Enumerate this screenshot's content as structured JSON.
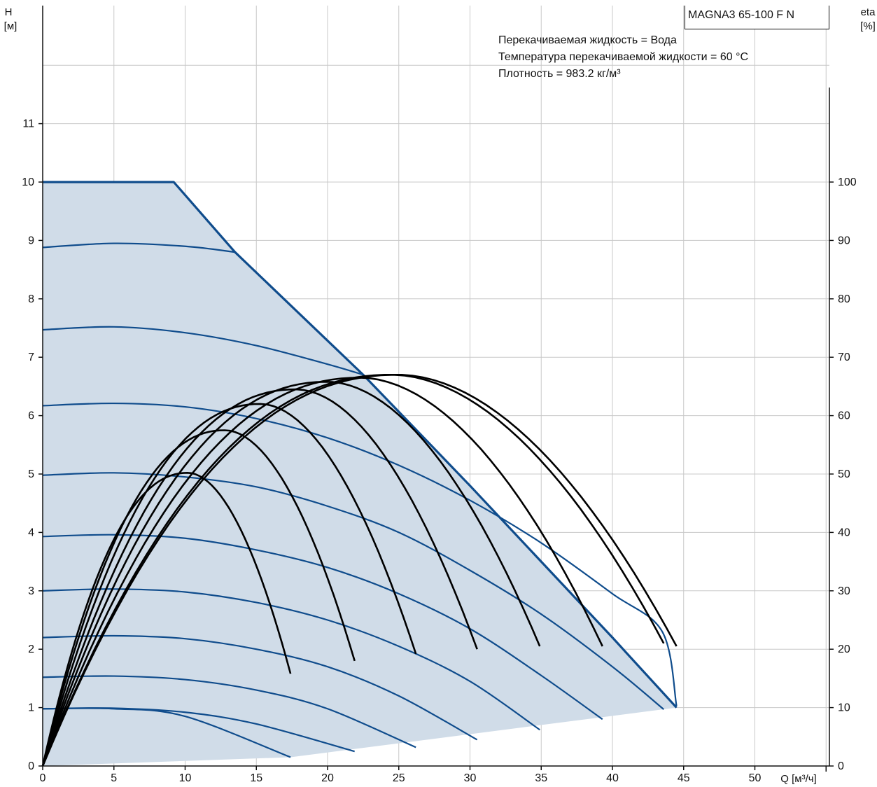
{
  "chart_data": {
    "type": "line",
    "ylabel_left": "H",
    "ylabel_left_unit": "[м]",
    "ylabel_right": "eta",
    "ylabel_right_unit": "[%]",
    "xlabel": "Q [м³/ч]",
    "xlim": [
      0,
      55
    ],
    "ylim_left": [
      0,
      12
    ],
    "ylim_right": [
      0,
      120
    ],
    "x_ticks": [
      "0",
      "5",
      "10",
      "15",
      "20",
      "25",
      "30",
      "35",
      "40",
      "45",
      "50"
    ],
    "y_left_ticks": [
      "0",
      "1",
      "2",
      "3",
      "4",
      "5",
      "6",
      "7",
      "8",
      "9",
      "10",
      "11"
    ],
    "y_right_ticks": [
      "0",
      "10",
      "20",
      "30",
      "40",
      "50",
      "60",
      "70",
      "80",
      "90",
      "100"
    ],
    "grid": true,
    "colors": {
      "head_curve": "#0f4c8c",
      "operating_area": "#d0dce8",
      "efficiency_curve": "#000000",
      "grid": "#c8c8c8"
    },
    "operating_area": {
      "max_curve": [
        [
          0,
          10.0
        ],
        [
          9.2,
          10.0
        ],
        [
          13.5,
          8.8
        ],
        [
          22.5,
          6.7
        ],
        [
          30,
          4.8
        ],
        [
          40,
          2.2
        ],
        [
          44.5,
          1.0
        ]
      ],
      "min_curve": [
        [
          44.5,
          1.0
        ],
        [
          17.4,
          0.15
        ]
      ]
    },
    "head_curves": [
      {
        "points": [
          [
            0,
            8.88
          ],
          [
            5,
            8.95
          ],
          [
            10,
            8.9
          ],
          [
            13.5,
            8.8
          ]
        ]
      },
      {
        "points": [
          [
            0,
            7.47
          ],
          [
            5,
            7.52
          ],
          [
            10,
            7.42
          ],
          [
            15,
            7.2
          ],
          [
            20,
            6.88
          ],
          [
            22.5,
            6.7
          ]
        ]
      },
      {
        "points": [
          [
            0,
            6.17
          ],
          [
            5,
            6.21
          ],
          [
            10,
            6.15
          ],
          [
            15,
            5.95
          ],
          [
            20,
            5.62
          ],
          [
            25,
            5.15
          ],
          [
            30,
            4.55
          ],
          [
            35,
            3.82
          ],
          [
            40,
            2.95
          ],
          [
            43.5,
            2.3
          ],
          [
            44.5,
            1.03
          ]
        ]
      },
      {
        "points": [
          [
            0,
            4.98
          ],
          [
            5,
            5.02
          ],
          [
            10,
            4.95
          ],
          [
            15,
            4.78
          ],
          [
            20,
            4.45
          ],
          [
            25,
            4.0
          ],
          [
            30,
            3.35
          ],
          [
            35,
            2.6
          ],
          [
            40,
            1.7
          ],
          [
            43.6,
            0.97
          ]
        ]
      },
      {
        "points": [
          [
            0,
            3.93
          ],
          [
            5,
            3.96
          ],
          [
            10,
            3.9
          ],
          [
            15,
            3.7
          ],
          [
            20,
            3.4
          ],
          [
            25,
            2.95
          ],
          [
            30,
            2.35
          ],
          [
            35,
            1.55
          ],
          [
            39.3,
            0.8
          ]
        ]
      },
      {
        "points": [
          [
            0,
            3.0
          ],
          [
            5,
            3.03
          ],
          [
            10,
            2.98
          ],
          [
            15,
            2.8
          ],
          [
            20,
            2.5
          ],
          [
            25,
            2.05
          ],
          [
            30,
            1.45
          ],
          [
            34.9,
            0.62
          ]
        ]
      },
      {
        "points": [
          [
            0,
            2.2
          ],
          [
            5,
            2.23
          ],
          [
            10,
            2.18
          ],
          [
            15,
            2.0
          ],
          [
            20,
            1.7
          ],
          [
            25,
            1.2
          ],
          [
            30.5,
            0.45
          ]
        ]
      },
      {
        "points": [
          [
            0,
            1.52
          ],
          [
            5,
            1.54
          ],
          [
            10,
            1.48
          ],
          [
            15,
            1.3
          ],
          [
            20,
            0.98
          ],
          [
            26.2,
            0.32
          ]
        ]
      },
      {
        "points": [
          [
            0,
            0.98
          ],
          [
            5,
            0.99
          ],
          [
            10,
            0.92
          ],
          [
            15,
            0.72
          ],
          [
            21.9,
            0.25
          ]
        ]
      },
      {
        "points": [
          [
            0,
            0.98
          ],
          [
            5,
            0.98
          ],
          [
            10,
            0.85
          ],
          [
            17.4,
            0.15
          ]
        ]
      }
    ],
    "efficiency_curves": [
      {
        "x_end": 17.4,
        "peak_x": 10.2,
        "peak_eta": 50.2,
        "end_eta": 15.8
      },
      {
        "x_end": 21.9,
        "peak_x": 12.8,
        "peak_eta": 57.5,
        "end_eta": 18.0
      },
      {
        "x_end": 26.2,
        "peak_x": 15.3,
        "peak_eta": 62.0,
        "end_eta": 19.2
      },
      {
        "x_end": 30.5,
        "peak_x": 17.8,
        "peak_eta": 64.5,
        "end_eta": 20.0
      },
      {
        "x_end": 34.9,
        "peak_x": 20.0,
        "peak_eta": 65.8,
        "end_eta": 20.5
      },
      {
        "x_end": 39.3,
        "peak_x": 22.3,
        "peak_eta": 66.5,
        "end_eta": 20.5
      },
      {
        "x_end": 43.6,
        "peak_x": 24.5,
        "peak_eta": 67.0,
        "end_eta": 21.0
      },
      {
        "x_end": 44.5,
        "peak_x": 25.0,
        "peak_eta": 67.0,
        "end_eta": 20.5
      }
    ]
  },
  "model": "MAGNA3 65-100 F N",
  "info_lines": [
    "Перекачиваемая жидкость = Вода",
    "Температура перекачиваемой жидкости = 60 °C",
    "Плотность = 983.2 кг/м³"
  ]
}
